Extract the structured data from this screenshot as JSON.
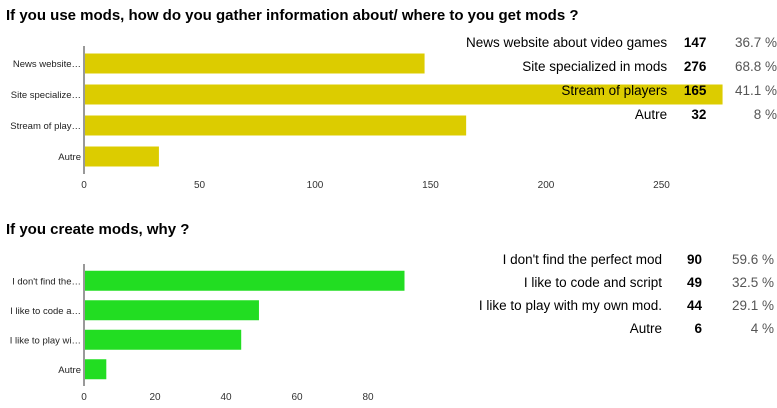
{
  "questions": [
    {
      "title": "If you use mods, how do you gather information about/ where to you get mods ?",
      "rows": [
        {
          "label": "News website about video games",
          "count": "147",
          "percent": "36.7 %"
        },
        {
          "label": "Site specialized in mods",
          "count": "276",
          "percent": "68.8 %"
        },
        {
          "label": "Stream of players",
          "count": "165",
          "percent": "41.1 %"
        },
        {
          "label": "Autre",
          "count": "32",
          "percent": "8 %"
        }
      ]
    },
    {
      "title": "If you create mods, why ?",
      "rows": [
        {
          "label": "I don't find the perfect mod",
          "count": "90",
          "percent": "59.6 %"
        },
        {
          "label": "I like to code and script",
          "count": "49",
          "percent": "32.5 %"
        },
        {
          "label": "I like to play with my own mod.",
          "count": "44",
          "percent": "29.1 %"
        },
        {
          "label": "Autre",
          "count": "6",
          "percent": "4 %"
        }
      ]
    }
  ],
  "chart_data": [
    {
      "type": "bar",
      "orientation": "horizontal",
      "title": "If you use mods, how do you gather information about/ where to you get mods ?",
      "categories": [
        "News website…",
        "Site specialize…",
        "Stream of play…",
        "Autre"
      ],
      "values": [
        147,
        276,
        165,
        32
      ],
      "xlim": [
        0,
        275
      ],
      "xticks": [
        0,
        50,
        100,
        150,
        200,
        250
      ],
      "color": "#dccc00"
    },
    {
      "type": "bar",
      "orientation": "horizontal",
      "title": "If you create mods, why ?",
      "categories": [
        "I don't find the…",
        "I like to code a…",
        "I like to play wi…",
        "Autre"
      ],
      "values": [
        90,
        49,
        44,
        6
      ],
      "xlim": [
        0,
        90
      ],
      "xticks": [
        0,
        20,
        40,
        60,
        80
      ],
      "color": "#22dd22"
    }
  ]
}
